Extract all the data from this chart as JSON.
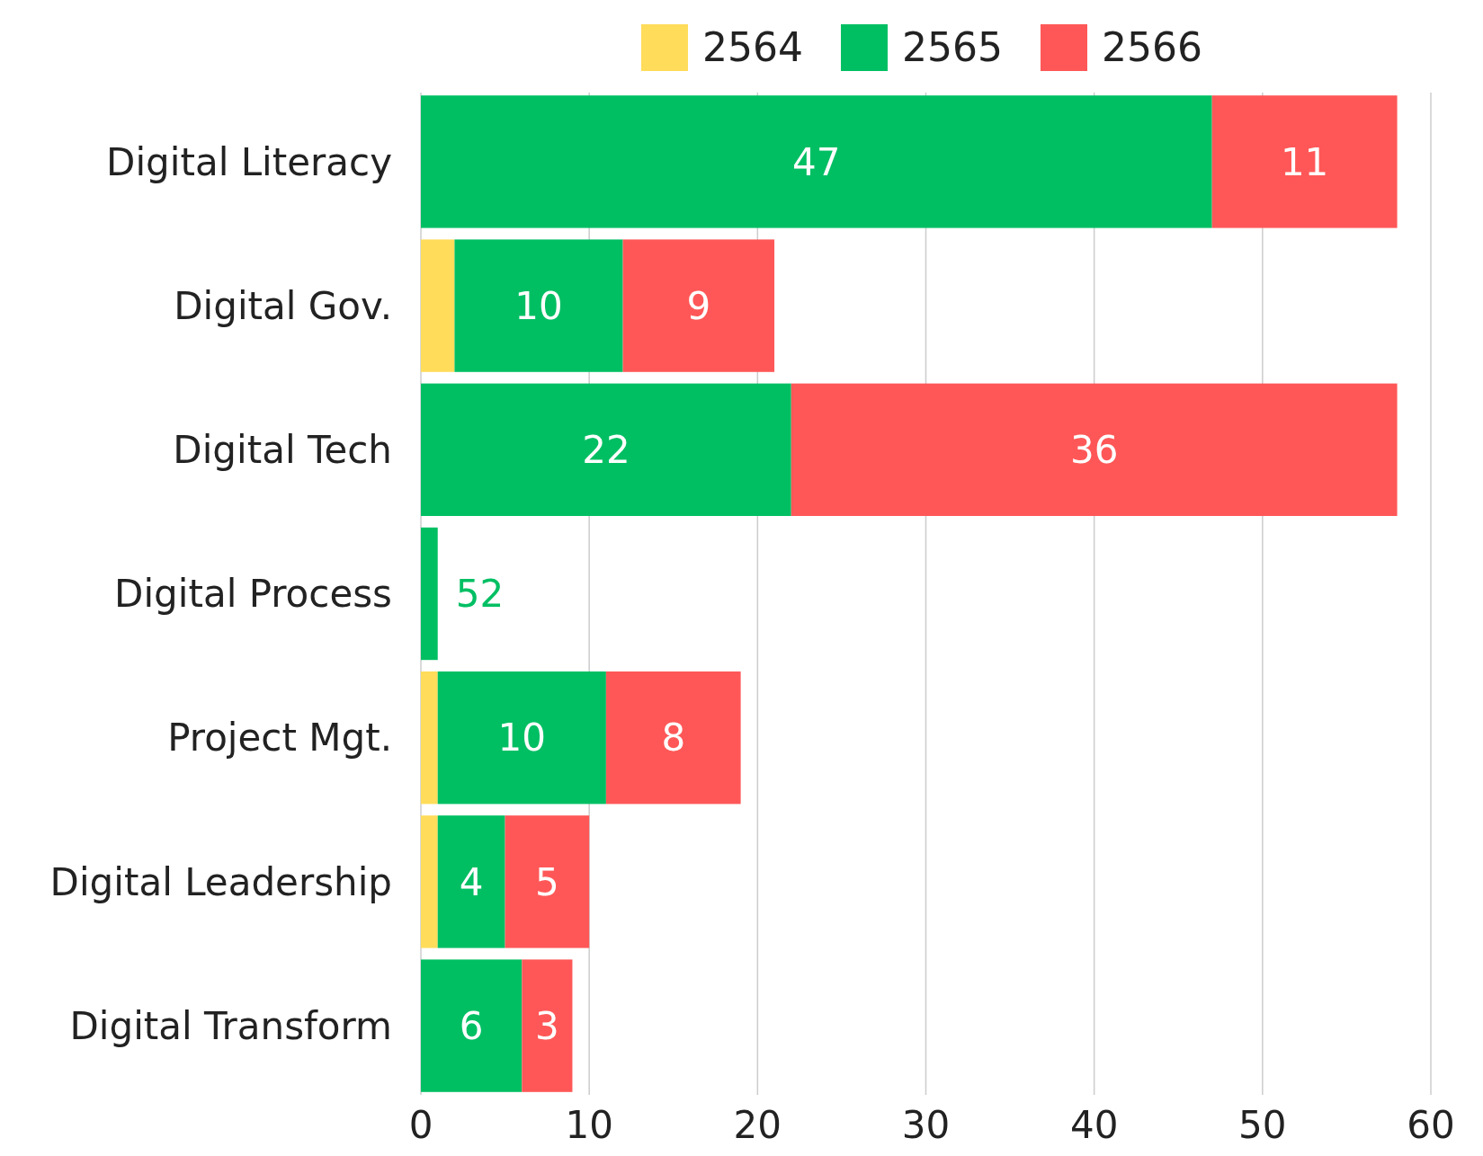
{
  "chart_data": {
    "type": "bar",
    "orientation": "horizontal",
    "stacked": true,
    "categories": [
      "Digital Literacy",
      "Digital Gov.",
      "Digital Tech",
      "Digital Process",
      "Project Mgt.",
      "Digital Leadership",
      "Digital Transform"
    ],
    "series": [
      {
        "name": "2564",
        "color": "#ffdc5a",
        "values": [
          0,
          2,
          0,
          0,
          1,
          1,
          0
        ]
      },
      {
        "name": "2565",
        "color": "#00bf63",
        "values": [
          47,
          10,
          22,
          1,
          10,
          4,
          6
        ],
        "value_labels": [
          "47",
          "10",
          "22",
          null,
          "10",
          "4",
          "6"
        ]
      },
      {
        "name": "2566",
        "color": "#ff5757",
        "values": [
          11,
          9,
          36,
          0,
          8,
          5,
          3
        ],
        "value_labels": [
          "11",
          "9",
          "36",
          null,
          "8",
          "5",
          "3"
        ]
      }
    ],
    "annotations": [
      {
        "text": "52",
        "x": 1,
        "y": "Digital Process"
      }
    ],
    "xlim": [
      0,
      60
    ],
    "xticks": [
      0,
      10,
      20,
      30,
      40,
      50,
      60
    ],
    "grid": "x",
    "legend": "top"
  }
}
